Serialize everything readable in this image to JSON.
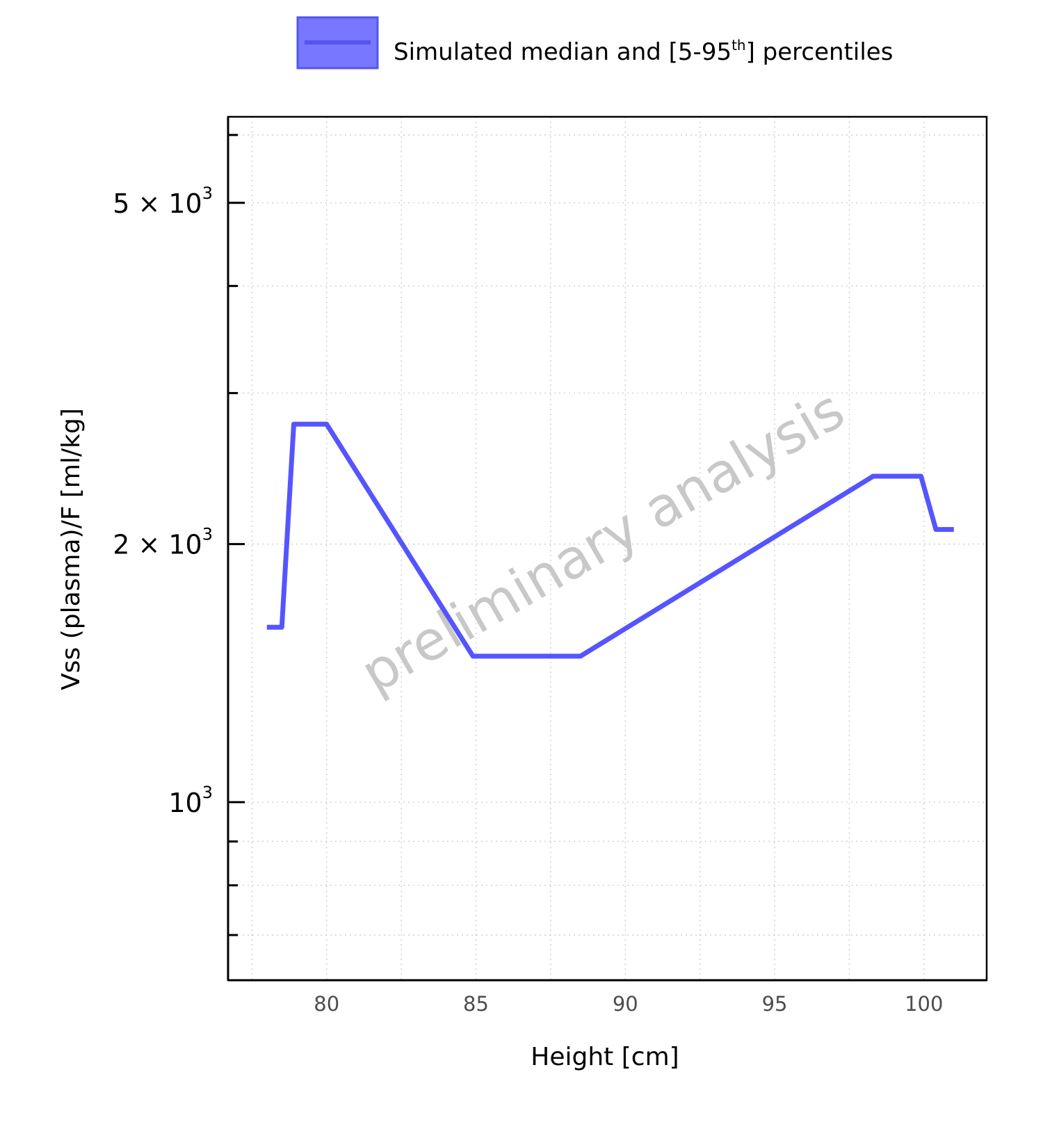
{
  "watermark": "preliminary analysis",
  "legend": {
    "label_main": "Simulated median and [5-95",
    "label_sup": "th",
    "label_end": "] percentiles"
  },
  "chart_data": {
    "type": "line",
    "title": "",
    "xlabel": "Height [cm]",
    "ylabel": "Vss (plasma)/F [ml/kg]",
    "xlim": [
      76.7,
      102.1
    ],
    "ylim": [
      620,
      6300
    ],
    "yscale": "log",
    "grid": true,
    "legend_position": "top",
    "x_ticks": [
      {
        "value": 80,
        "label": "80"
      },
      {
        "value": 85,
        "label": "85"
      },
      {
        "value": 90,
        "label": "90"
      },
      {
        "value": 95,
        "label": "95"
      },
      {
        "value": 100,
        "label": "100"
      }
    ],
    "y_major_ticks": [
      {
        "value": 1000,
        "mantissa": "",
        "base": "10",
        "exp": "3"
      },
      {
        "value": 2000,
        "mantissa": "2 × ",
        "base": "10",
        "exp": "3"
      },
      {
        "value": 5000,
        "mantissa": "5 × ",
        "base": "10",
        "exp": "3"
      }
    ],
    "y_minor_ticks": [
      700,
      800,
      900,
      3000,
      4000,
      6000
    ],
    "series": [
      {
        "name": "Simulated median and [5-95th] percentiles",
        "color": "#5555ff",
        "x": [
          78.0,
          78.5,
          78.9,
          80.0,
          84.9,
          88.5,
          98.3,
          99.9,
          100.4,
          101.0
        ],
        "y": [
          1600,
          1600,
          2760,
          2760,
          1480,
          1480,
          2400,
          2400,
          2080,
          2080
        ]
      }
    ]
  }
}
